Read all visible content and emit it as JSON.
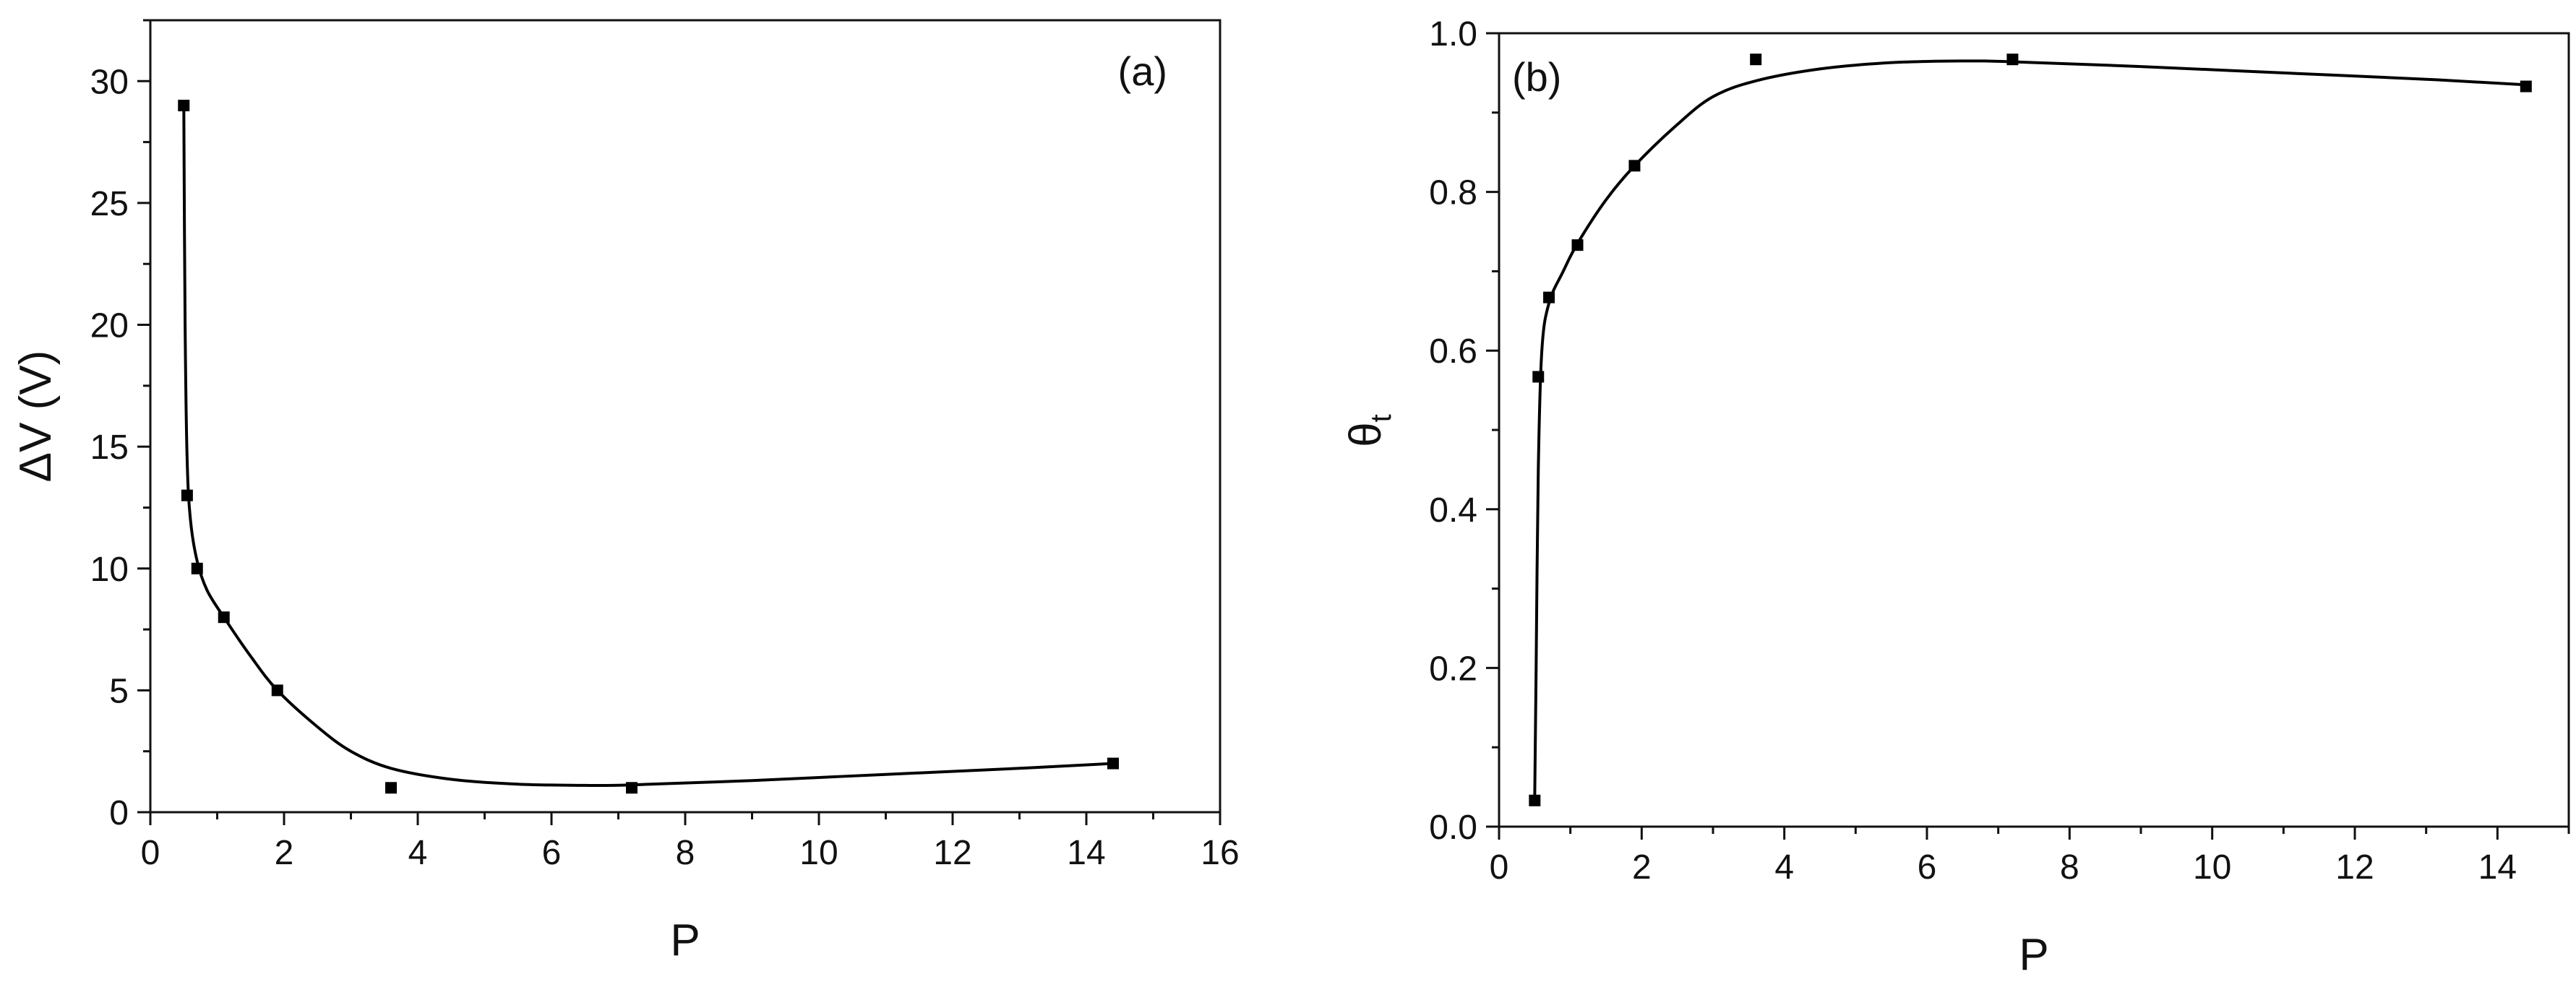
{
  "chart_data": [
    {
      "type": "scatter",
      "panel_label": "(a)",
      "xlabel": "P",
      "ylabel": "ΔV (V)",
      "xlim": [
        0,
        16
      ],
      "ylim": [
        0,
        32.5
      ],
      "xticks": [
        0,
        2,
        4,
        6,
        8,
        10,
        12,
        14,
        16
      ],
      "yticks": [
        0,
        5,
        10,
        15,
        20,
        25,
        30
      ],
      "grid": false,
      "series": [
        {
          "marker": "square",
          "points": [
            {
              "x": 0.5,
              "y": 29
            },
            {
              "x": 0.55,
              "y": 13
            },
            {
              "x": 0.7,
              "y": 10
            },
            {
              "x": 1.1,
              "y": 8
            },
            {
              "x": 1.9,
              "y": 5
            },
            {
              "x": 3.6,
              "y": 1
            },
            {
              "x": 7.2,
              "y": 1
            },
            {
              "x": 14.4,
              "y": 2
            }
          ]
        }
      ],
      "fit_curve": [
        [
          0.5,
          29
        ],
        [
          0.52,
          20
        ],
        [
          0.55,
          14.5
        ],
        [
          0.6,
          12
        ],
        [
          0.7,
          10.3
        ],
        [
          0.85,
          9.1
        ],
        [
          1.1,
          8
        ],
        [
          1.5,
          6.4
        ],
        [
          1.9,
          5
        ],
        [
          2.5,
          3.5
        ],
        [
          3.0,
          2.5
        ],
        [
          3.6,
          1.8
        ],
        [
          4.5,
          1.35
        ],
        [
          5.5,
          1.15
        ],
        [
          6.5,
          1.1
        ],
        [
          7.2,
          1.12
        ],
        [
          9,
          1.3
        ],
        [
          11,
          1.55
        ],
        [
          13,
          1.8
        ],
        [
          14.4,
          2
        ]
      ],
      "colors": {
        "line": "#000000",
        "marker": "#000000"
      }
    },
    {
      "type": "scatter",
      "panel_label": "(b)",
      "xlabel": "P",
      "ylabel": "θt",
      "xlim": [
        0,
        15
      ],
      "ylim": [
        0,
        1.0
      ],
      "xticks": [
        0,
        2,
        4,
        6,
        8,
        10,
        12,
        14
      ],
      "yticks": [
        0.0,
        0.2,
        0.4,
        0.6,
        0.8,
        1.0
      ],
      "grid": false,
      "series": [
        {
          "marker": "square",
          "points": [
            {
              "x": 0.5,
              "y": 0.033
            },
            {
              "x": 0.55,
              "y": 0.567
            },
            {
              "x": 0.7,
              "y": 0.667
            },
            {
              "x": 1.1,
              "y": 0.733
            },
            {
              "x": 1.9,
              "y": 0.833
            },
            {
              "x": 3.6,
              "y": 0.967
            },
            {
              "x": 7.2,
              "y": 0.967
            },
            {
              "x": 14.4,
              "y": 0.933
            }
          ]
        }
      ],
      "fit_curve": [
        [
          0.5,
          0.033
        ],
        [
          0.52,
          0.2
        ],
        [
          0.55,
          0.45
        ],
        [
          0.6,
          0.6
        ],
        [
          0.7,
          0.66
        ],
        [
          0.9,
          0.7
        ],
        [
          1.1,
          0.735
        ],
        [
          1.5,
          0.79
        ],
        [
          1.9,
          0.833
        ],
        [
          2.5,
          0.885
        ],
        [
          3.0,
          0.92
        ],
        [
          3.6,
          0.94
        ],
        [
          4.5,
          0.955
        ],
        [
          5.5,
          0.963
        ],
        [
          6.5,
          0.965
        ],
        [
          7.2,
          0.964
        ],
        [
          9,
          0.958
        ],
        [
          11,
          0.95
        ],
        [
          13,
          0.942
        ],
        [
          14.4,
          0.935
        ]
      ],
      "colors": {
        "line": "#000000",
        "marker": "#000000"
      }
    }
  ]
}
